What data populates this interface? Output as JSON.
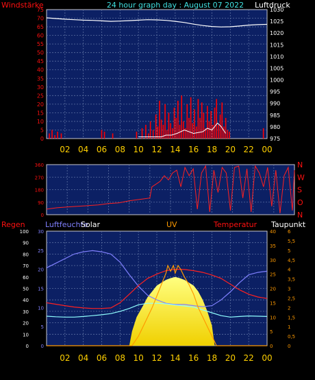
{
  "title": "24 hour graph day : August 07 2022",
  "x_ticks": [
    "02",
    "04",
    "06",
    "08",
    "10",
    "12",
    "14",
    "16",
    "18",
    "20",
    "22",
    "00"
  ],
  "colors": {
    "bg": "#000000",
    "plot": "#0c2064",
    "grid": "#5a6ea0",
    "title": "#40e0e0",
    "tick": "#ffd000",
    "red_label": "#ff1010",
    "white": "#ffffff",
    "wind": "#ff0000",
    "gust": "#ffffff",
    "pressure": "#ffffff",
    "direction": "#ff2020",
    "humidity": "#8080ff",
    "dewpoint": "#90ffff",
    "temperature": "#ff2020",
    "uv": "#ff9a00",
    "solar_top": "#ffff80",
    "solar_bottom": "#f0d000"
  },
  "chart_data": [
    {
      "id": "wind-pressure",
      "type": "bar",
      "left_label": "Windstärke",
      "right_label": "Luftdruck",
      "x_range": [
        0,
        24
      ],
      "left_ticks": [
        0,
        5,
        10,
        15,
        20,
        25,
        30,
        35,
        40,
        45,
        50,
        55,
        60,
        65,
        70,
        75
      ],
      "left_range": [
        0,
        75
      ],
      "right_ticks": [
        975,
        980,
        985,
        990,
        995,
        1000,
        1005,
        1010,
        1015,
        1020,
        1025,
        1030
      ],
      "right_range": [
        975,
        1030
      ],
      "pressure": {
        "x": [
          0,
          1,
          2,
          3,
          4,
          5,
          6,
          7,
          8,
          9,
          10,
          11,
          12,
          13,
          14,
          15,
          16,
          17,
          18,
          19,
          20,
          21,
          22,
          23,
          24
        ],
        "y": [
          1026.5,
          1026.2,
          1025.9,
          1025.7,
          1025.5,
          1025.4,
          1025.2,
          1025.0,
          1025.1,
          1025.3,
          1025.5,
          1025.7,
          1025.6,
          1025.4,
          1025.0,
          1024.5,
          1023.8,
          1023.2,
          1022.8,
          1022.6,
          1022.7,
          1023.0,
          1023.4,
          1023.6,
          1023.7
        ]
      },
      "wind": {
        "x": [
          0.3,
          0.6,
          0.9,
          1.2,
          1.6,
          6.0,
          6.3,
          7.2,
          9.8,
          10.4,
          10.8,
          11.1,
          11.3,
          11.6,
          11.9,
          12.1,
          12.3,
          12.5,
          12.7,
          12.9,
          13.1,
          13.3,
          13.5,
          13.7,
          13.9,
          14.1,
          14.3,
          14.5,
          14.7,
          14.9,
          15.1,
          15.3,
          15.5,
          15.7,
          15.9,
          16.1,
          16.3,
          16.5,
          16.7,
          16.9,
          17.1,
          17.3,
          17.5,
          17.7,
          17.9,
          18.1,
          18.3,
          18.5,
          18.7,
          18.9,
          19.1,
          19.3,
          19.5,
          19.7,
          19.9,
          23.6
        ],
        "y": [
          3,
          5,
          2,
          4,
          3,
          5,
          4,
          3,
          4,
          6,
          8,
          3,
          10,
          5,
          14,
          7,
          22,
          11,
          8,
          20,
          5,
          15,
          9,
          6,
          18,
          12,
          22,
          8,
          25,
          10,
          6,
          20,
          12,
          24,
          9,
          17,
          7,
          23,
          12,
          21,
          15,
          6,
          19,
          10,
          16,
          8,
          18,
          23,
          8,
          14,
          21,
          7,
          12,
          5,
          4,
          6
        ]
      },
      "gust": {
        "x": [
          10.0,
          12.5,
          13.0,
          13.6,
          14.2,
          15.0,
          16.0,
          17.0,
          17.5,
          18.0,
          18.6,
          19.0,
          19.5
        ],
        "y": [
          1,
          1,
          2,
          2,
          3,
          5,
          3,
          4,
          6,
          5,
          9,
          7,
          3
        ]
      }
    },
    {
      "id": "wind-direction",
      "type": "line",
      "left_ticks": [
        0,
        90,
        180,
        270,
        360
      ],
      "left_range": [
        0,
        360
      ],
      "right_ticks": [
        "N",
        "O",
        "S",
        "W",
        "N"
      ],
      "x_range": [
        0,
        24
      ],
      "direction": {
        "x": [
          0,
          1,
          2,
          3,
          4,
          5,
          6,
          7,
          8,
          9,
          10,
          10.2,
          10.6,
          11,
          11.4,
          11.8,
          12.2,
          12.6,
          13.0,
          13.4,
          13.8,
          14.2,
          14.6,
          15.0,
          15.4,
          15.8,
          16.2,
          16.6,
          17.0,
          17.4,
          17.8,
          18.2,
          18.6,
          19.0,
          19.4,
          19.8,
          20.2,
          20.6,
          21.0,
          21.4,
          21.8,
          22.2,
          22.6,
          23.0,
          23.4,
          23.8,
          24
        ],
        "y": [
          40,
          50,
          55,
          60,
          65,
          70,
          80,
          85,
          100,
          110,
          120,
          200,
          220,
          240,
          280,
          250,
          300,
          320,
          200,
          340,
          280,
          330,
          40,
          300,
          350,
          20,
          320,
          160,
          340,
          300,
          30,
          340,
          350,
          120,
          330,
          20,
          350,
          300,
          200,
          340,
          60,
          320,
          10,
          280,
          340,
          30,
          320
        ]
      }
    },
    {
      "id": "weather",
      "type": "line",
      "labels": [
        "Regen",
        "Luftfeuchte",
        "Solar",
        "UV",
        "Temperatur",
        "Taupunkt"
      ],
      "x_range": [
        0,
        24
      ],
      "left_ticks": [
        0,
        10,
        20,
        30,
        40,
        50,
        60,
        70,
        80,
        90,
        100
      ],
      "left_range": [
        0,
        100
      ],
      "left2_ticks": [
        0,
        5,
        10,
        15,
        20,
        25,
        30
      ],
      "left2_range": [
        0,
        30
      ],
      "right_ticks": [
        0,
        5,
        10,
        15,
        20,
        25,
        30,
        35,
        40
      ],
      "right_range": [
        0,
        40
      ],
      "right2_ticks": [
        "0",
        "0,5",
        "1",
        "1,5",
        "2",
        "2,5",
        "3",
        "3,5",
        "4",
        "4,5",
        "5",
        "5,5",
        "6"
      ],
      "right2_range": [
        0,
        6
      ],
      "humidity": {
        "x": [
          0,
          1,
          2,
          3,
          4,
          5,
          6,
          7,
          8,
          9,
          10,
          11,
          12,
          13,
          14,
          15,
          16,
          17,
          18,
          19,
          20,
          21,
          22,
          23,
          24
        ],
        "y": [
          68,
          72,
          76,
          80,
          82,
          83,
          82,
          80,
          73,
          62,
          52,
          44,
          40,
          37,
          36,
          36,
          35,
          34,
          35,
          40,
          47,
          55,
          62,
          64,
          65
        ]
      },
      "temperature": {
        "x": [
          0,
          1,
          2,
          3,
          4,
          5,
          6,
          7,
          8,
          9,
          10,
          11,
          12,
          13,
          14,
          15,
          16,
          17,
          18,
          19,
          20,
          21,
          22,
          23,
          24
        ],
        "y": [
          15,
          14.5,
          14,
          13.5,
          13.2,
          13,
          13,
          13.2,
          15,
          18,
          21,
          23.5,
          25,
          26.2,
          26.7,
          26.6,
          26.2,
          25.6,
          24.7,
          23.5,
          21.5,
          19.5,
          18,
          17,
          16.5
        ]
      },
      "dewpoint": {
        "x": [
          0,
          1,
          2,
          3,
          4,
          5,
          6,
          7,
          8,
          9,
          10,
          11,
          12,
          13,
          14,
          15,
          16,
          17,
          18,
          19,
          20,
          21,
          22,
          23,
          24
        ],
        "y": [
          10.3,
          10.1,
          10,
          10,
          10.2,
          10.5,
          10.8,
          11.2,
          12,
          13,
          14.3,
          14.8,
          14.8,
          14.6,
          14.2,
          13.9,
          13.5,
          12.5,
          11.5,
          10.5,
          10,
          10.2,
          10.4,
          10.3,
          10.2
        ]
      },
      "solar": {
        "x": [
          0,
          9.0,
          9.3,
          9.8,
          10.5,
          11.0,
          11.5,
          12.0,
          12.5,
          13.0,
          13.5,
          14.0,
          14.5,
          15.0,
          15.5,
          16.0,
          16.5,
          17.0,
          17.5,
          18.0,
          18.3,
          24
        ],
        "y": [
          0,
          0,
          5,
          10,
          14,
          17,
          19,
          21,
          22,
          23,
          23.6,
          24,
          23.6,
          23,
          22,
          21,
          19,
          16,
          12,
          7,
          0,
          0
        ]
      },
      "uv": {
        "x": [
          0,
          9.3,
          10.0,
          10.5,
          11.0,
          11.5,
          12.0,
          12.5,
          13.0,
          13.2,
          13.5,
          13.8,
          14.0,
          14.3,
          14.6,
          15.0,
          15.5,
          16.0,
          16.5,
          17.0,
          17.5,
          18.0,
          18.5,
          24
        ],
        "y": [
          0,
          0,
          0.5,
          1,
          1.5,
          2,
          2.6,
          3.2,
          3.8,
          4.2,
          3.9,
          4.2,
          3.8,
          4.2,
          4.0,
          3.6,
          3.2,
          2.7,
          2.0,
          1.5,
          1.0,
          0.5,
          0,
          0
        ]
      }
    }
  ]
}
